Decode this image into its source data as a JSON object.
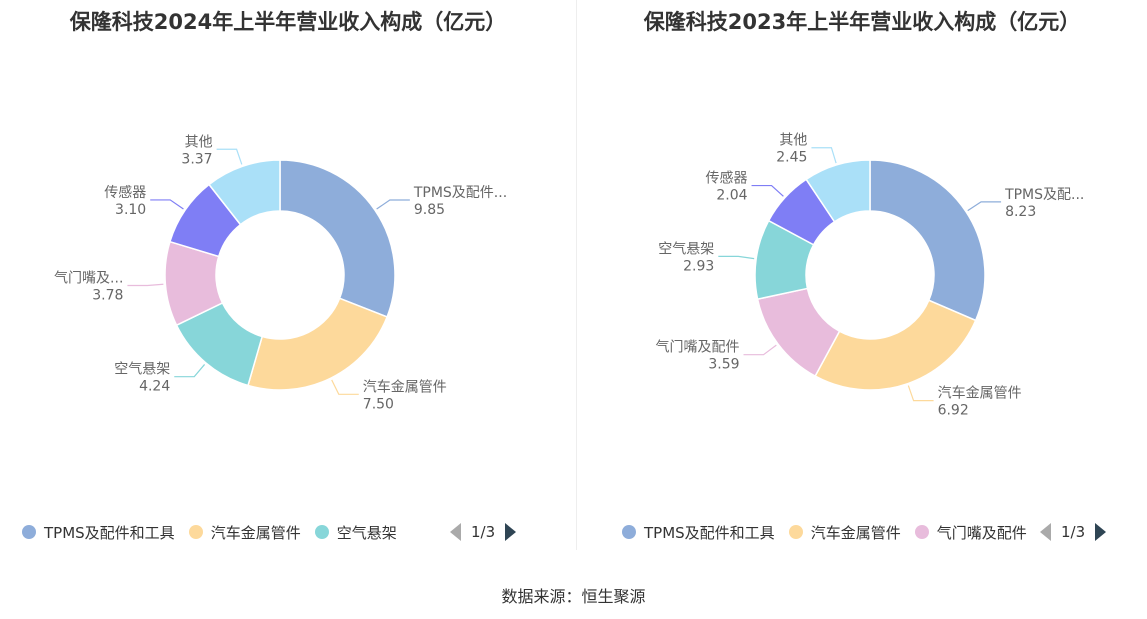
{
  "source_text": "数据来源：恒生聚源",
  "chart_data": [
    {
      "type": "pie",
      "title": "保隆科技2024年上半年营业收入构成（亿元）",
      "unit": "亿元",
      "slices": [
        {
          "name": "TPMS及配件和工具",
          "label": "TPMS及配件...",
          "value": 9.85,
          "value_text": "9.85",
          "color": "#8eadda"
        },
        {
          "name": "汽车金属管件",
          "label": "汽车金属管件",
          "value": 7.5,
          "value_text": "7.50",
          "color": "#fdd99b"
        },
        {
          "name": "空气悬架",
          "label": "空气悬架",
          "value": 4.24,
          "value_text": "4.24",
          "color": "#87d6d9"
        },
        {
          "name": "气门嘴及配件",
          "label": "气门嘴及...",
          "value": 3.78,
          "value_text": "3.78",
          "color": "#e8bcdc"
        },
        {
          "name": "传感器",
          "label": "传感器",
          "value": 3.1,
          "value_text": "3.10",
          "color": "#7f7ef5"
        },
        {
          "name": "其他",
          "label": "其他",
          "value": 3.37,
          "value_text": "3.37",
          "color": "#aae0f8"
        }
      ],
      "legend": {
        "position": "bottom-left",
        "items": [
          "TPMS及配件和工具",
          "汽车金属管件",
          "空气悬架"
        ],
        "colors": [
          "#8eadda",
          "#fdd99b",
          "#87d6d9"
        ],
        "page": "1/3"
      }
    },
    {
      "type": "pie",
      "title": "保隆科技2023年上半年营业收入构成（亿元）",
      "unit": "亿元",
      "slices": [
        {
          "name": "TPMS及配件和工具",
          "label": "TPMS及配...",
          "value": 8.23,
          "value_text": "8.23",
          "color": "#8eadda"
        },
        {
          "name": "汽车金属管件",
          "label": "汽车金属管件",
          "value": 6.92,
          "value_text": "6.92",
          "color": "#fdd99b"
        },
        {
          "name": "气门嘴及配件",
          "label": "气门嘴及配件",
          "value": 3.59,
          "value_text": "3.59",
          "color": "#e8bcdc"
        },
        {
          "name": "空气悬架",
          "label": "空气悬架",
          "value": 2.93,
          "value_text": "2.93",
          "color": "#87d6d9"
        },
        {
          "name": "传感器",
          "label": "传感器",
          "value": 2.04,
          "value_text": "2.04",
          "color": "#7f7ef5"
        },
        {
          "name": "其他",
          "label": "其他",
          "value": 2.45,
          "value_text": "2.45",
          "color": "#aae0f8"
        }
      ],
      "legend": {
        "position": "bottom-left",
        "items": [
          "TPMS及配件和工具",
          "汽车金属管件",
          "气门嘴及配件"
        ],
        "colors": [
          "#8eadda",
          "#fdd99b",
          "#e8bcdc"
        ],
        "page": "1/3"
      }
    }
  ]
}
